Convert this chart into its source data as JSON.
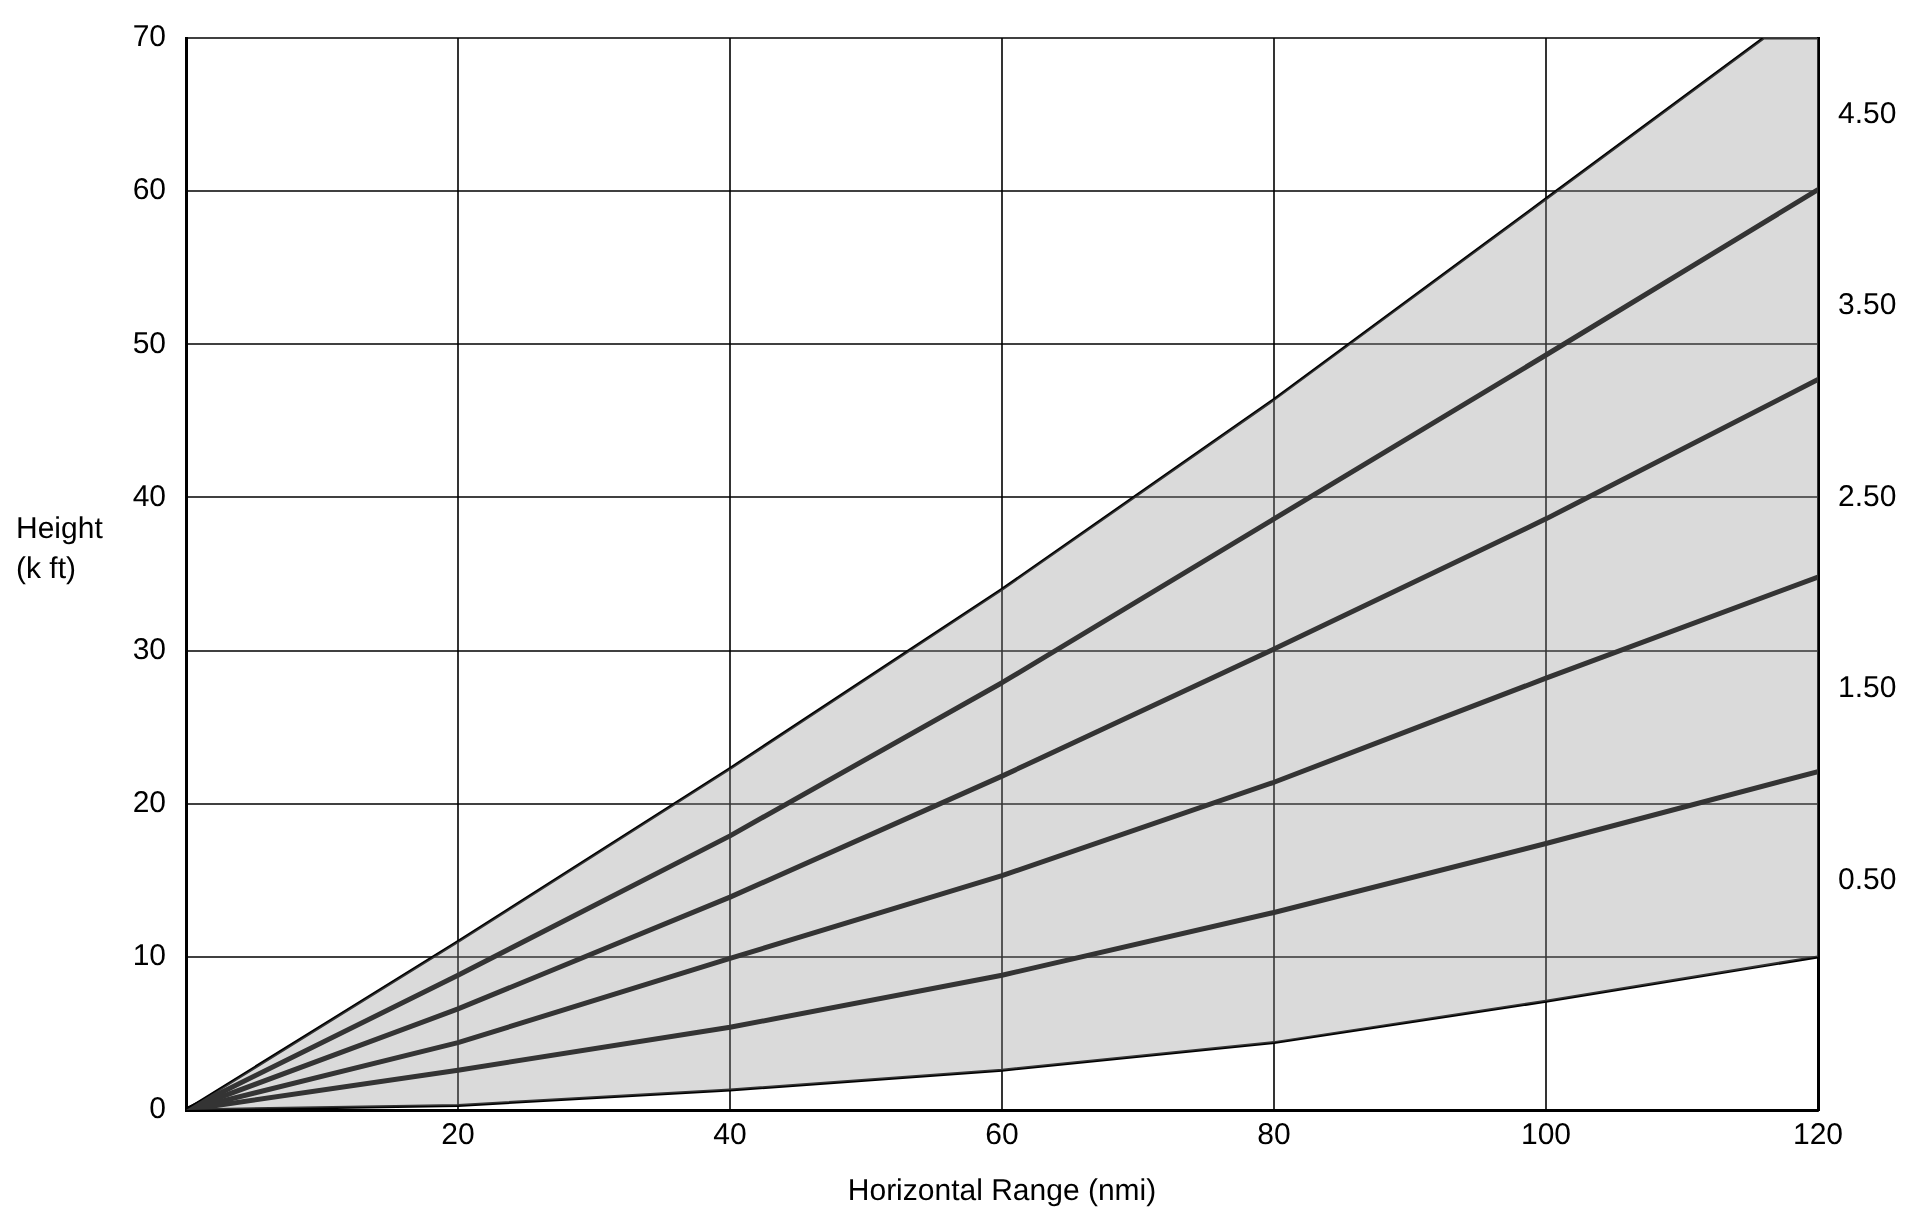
{
  "chart_data": {
    "type": "line",
    "xlabel": "Horizontal Range (nmi)",
    "ylabel": "Height (k ft)",
    "x": [
      0,
      20,
      40,
      60,
      80,
      100,
      120
    ],
    "series": [
      {
        "color": "#000000",
        "x": [
          0,
          20,
          40,
          60,
          80,
          100,
          116,
          120
        ],
        "values": [
          0,
          11,
          22.3,
          34,
          46.4,
          59.5,
          70,
          70
        ],
        "lower": [
          0,
          0.3,
          1.3,
          2.6,
          4.4,
          7.1,
          9.4,
          10
        ],
        "upper": [
          0,
          11,
          22.3,
          34,
          46.4,
          59.5,
          70,
          70
        ]
      },
      {
        "color": "#000000",
        "values": [
          0,
          8.8,
          17.9,
          27.9,
          38.6,
          49.3,
          60.1
        ]
      },
      {
        "color": "#000000",
        "values": [
          0,
          6.6,
          13.9,
          21.8,
          30.1,
          38.6,
          47.7
        ]
      },
      {
        "color": "#000000",
        "values": [
          0,
          4.4,
          9.9,
          15.3,
          21.4,
          28.2,
          34.8
        ]
      },
      {
        "color": "#000000",
        "values": [
          0,
          2.6,
          5.4,
          8.8,
          12.9,
          17.4,
          22.1
        ]
      },
      {
        "color": "#000000",
        "values": [
          0,
          0.3,
          1.3,
          2.6,
          4.4,
          7.1,
          10
        ]
      }
    ],
    "xlim": [
      0,
      120
    ],
    "xticks": [
      20,
      40,
      60,
      80,
      100,
      120
    ],
    "ylim": [
      0,
      70
    ],
    "yticks": [
      0,
      10,
      20,
      30,
      40,
      50,
      60,
      70
    ],
    "y2lim": [
      -0.7,
      4.9
    ],
    "y2ticks": [
      {
        "value": 0.5,
        "label": "0.50"
      },
      {
        "value": 1.5,
        "label": "1.50"
      },
      {
        "value": 2.5,
        "label": "2.50"
      },
      {
        "value": 3.5,
        "label": "3.50"
      },
      {
        "value": 4.5,
        "label": "4.50"
      }
    ],
    "grid": true,
    "legend": false,
    "marker": "none",
    "line_style": "solid"
  }
}
